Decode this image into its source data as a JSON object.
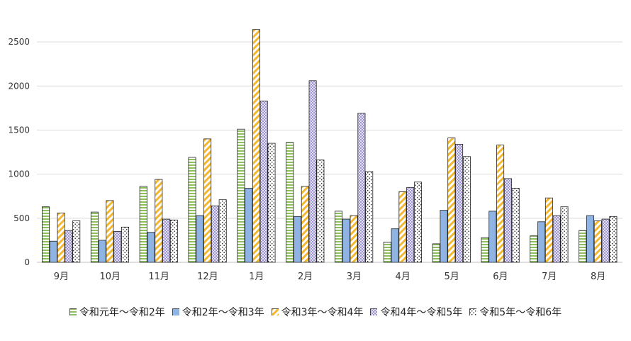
{
  "chart_data": {
    "type": "bar",
    "categories": [
      "9月",
      "10月",
      "11月",
      "12月",
      "1月",
      "2月",
      "3月",
      "4月",
      "5月",
      "6月",
      "7月",
      "8月"
    ],
    "series": [
      {
        "name": "令和元年～令和2年",
        "color": "#c6e0a8",
        "pattern": "horizontal-stripes",
        "values": [
          630,
          570,
          860,
          1190,
          1510,
          1360,
          580,
          230,
          210,
          280,
          300,
          360
        ]
      },
      {
        "name": "令和2年～令和3年",
        "color": "#8fb4e3",
        "pattern": "solid",
        "values": [
          240,
          250,
          340,
          530,
          840,
          520,
          490,
          380,
          590,
          580,
          460,
          530
        ]
      },
      {
        "name": "令和3年～令和4年",
        "color": "#f6c65b",
        "pattern": "diagonal-stripes",
        "values": [
          560,
          700,
          940,
          1400,
          2640,
          860,
          530,
          800,
          1410,
          1330,
          730,
          470
        ]
      },
      {
        "name": "令和4年～令和5年",
        "color": "#c8c4e6",
        "pattern": "checker",
        "values": [
          360,
          350,
          490,
          640,
          1830,
          2060,
          1690,
          850,
          1340,
          950,
          530,
          490
        ]
      },
      {
        "name": "令和5年～令和6年",
        "color": "#ffffff",
        "pattern": "dots",
        "values": [
          470,
          400,
          480,
          710,
          1350,
          1160,
          1030,
          910,
          1200,
          840,
          630,
          520
        ]
      }
    ],
    "yticks": [
      0,
      500,
      1000,
      1500,
      2000,
      2500
    ],
    "ylim": [
      0,
      2750
    ],
    "grid": true,
    "legend_position": "bottom"
  }
}
